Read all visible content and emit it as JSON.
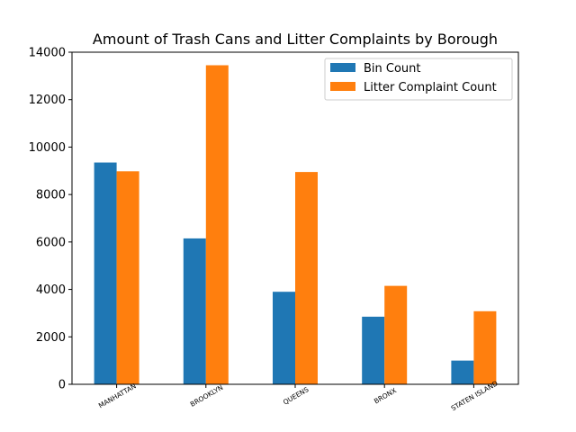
{
  "chart_data": {
    "type": "bar",
    "title": "Amount of Trash Cans and Litter Complaints by Borough",
    "xlabel": "",
    "ylabel": "",
    "categories": [
      "MANHATTAN",
      "BROOKLYN",
      "QUEENS",
      "BRONX",
      "STATEN ISLAND"
    ],
    "series": [
      {
        "name": "Bin Count",
        "color": "#1f77b4",
        "values": [
          9350,
          6150,
          3900,
          2850,
          1000
        ]
      },
      {
        "name": "Litter Complaint Count",
        "color": "#ff7f0e",
        "values": [
          8980,
          13450,
          8950,
          4150,
          3080
        ]
      }
    ],
    "ylim": [
      0,
      14000
    ],
    "yticks": [
      0,
      2000,
      4000,
      6000,
      8000,
      10000,
      12000,
      14000
    ],
    "legend_position": "top-right",
    "grid": false
  }
}
